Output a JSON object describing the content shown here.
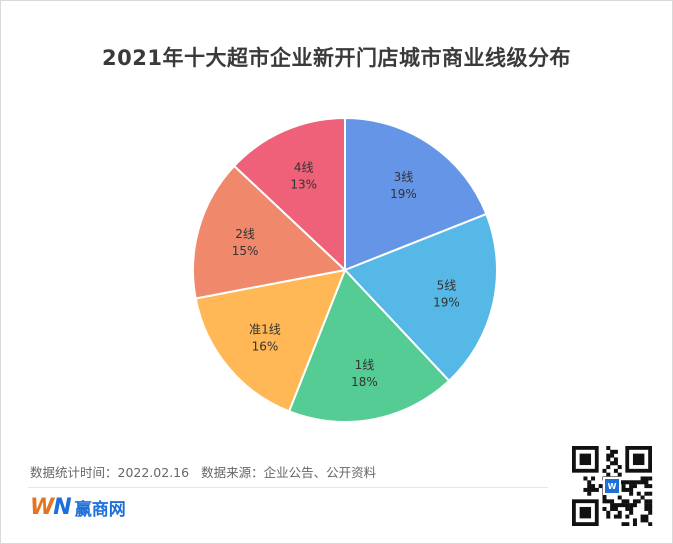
{
  "chart_data": {
    "type": "pie",
    "title": "2021年十大超市企业新开门店城市商业线级分布",
    "slices": [
      {
        "label": "3线",
        "value": 19,
        "value_label": "19%",
        "color": "#6495e6"
      },
      {
        "label": "5线",
        "value": 19,
        "value_label": "19%",
        "color": "#56b8e6"
      },
      {
        "label": "1线",
        "value": 18,
        "value_label": "18%",
        "color": "#56cc95"
      },
      {
        "label": "准1线",
        "value": 16,
        "value_label": "16%",
        "color": "#ffb855"
      },
      {
        "label": "2线",
        "value": 15,
        "value_label": "15%",
        "color": "#f0896c"
      },
      {
        "label": "4线",
        "value": 13,
        "value_label": "13%",
        "color": "#ee6179"
      }
    ],
    "legend": "none"
  },
  "footer": {
    "date_text": "数据统计时间：2022.02.16",
    "source_text": "数据来源：企业公告、公开资料"
  },
  "brand": {
    "mark_w": "W",
    "mark_n": "N",
    "name": "赢商网"
  },
  "icons": {
    "qr": "qr-code-icon"
  }
}
